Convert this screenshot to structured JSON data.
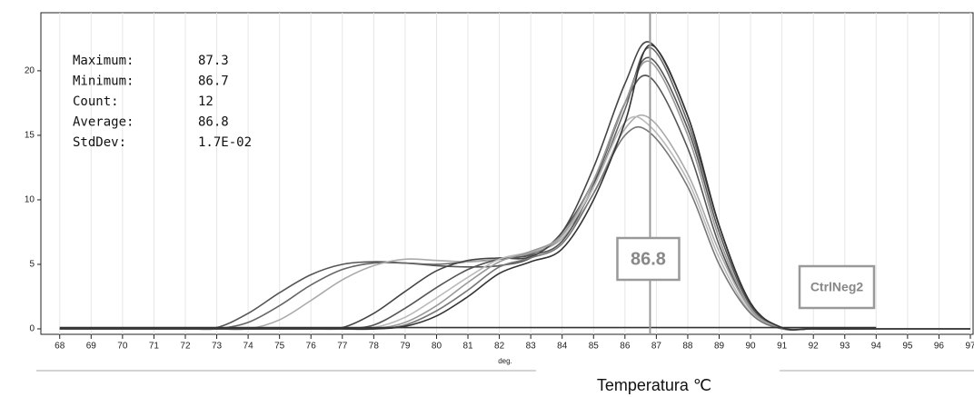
{
  "chart_data": {
    "type": "line",
    "x": [
      68,
      70,
      72,
      73,
      74,
      75,
      76,
      77,
      78,
      79,
      80,
      81,
      82,
      83,
      84,
      85,
      86,
      86.8,
      88,
      89,
      90,
      91,
      92,
      94,
      97
    ],
    "xlim": [
      67.4,
      97
    ],
    "ylim": [
      0,
      24.5
    ],
    "xticks": [
      68,
      69,
      70,
      71,
      72,
      73,
      74,
      75,
      76,
      77,
      78,
      79,
      80,
      81,
      82,
      83,
      84,
      85,
      86,
      87,
      88,
      89,
      90,
      91,
      92,
      93,
      94,
      95,
      96,
      97
    ],
    "yticks": [
      0,
      5,
      10,
      15,
      20
    ],
    "x_unit": "deg.",
    "xlabel": "Temperatura ℃",
    "stats": [
      {
        "label": "Maximum:",
        "value": "87.3"
      },
      {
        "label": "Minimum:",
        "value": "86.7"
      },
      {
        "label": "Count:",
        "value": "12"
      },
      {
        "label": "Average:",
        "value": "86.8"
      },
      {
        "label": "StdDev:",
        "value": "1.7E-02"
      }
    ],
    "marker": 86.8,
    "series": [
      {
        "color": "#555555",
        "values": [
          0,
          0,
          0,
          0.1,
          1.2,
          2.8,
          4.2,
          5,
          5.2,
          5.1,
          4.9,
          4.8,
          4.9,
          5.5,
          7.5,
          11.5,
          17.5,
          19.5,
          14,
          6.5,
          1.5,
          0.1,
          0,
          0,
          0
        ]
      },
      {
        "color": "#666666",
        "values": [
          0,
          0,
          0,
          0,
          0.5,
          1.8,
          3.4,
          4.6,
          5.1,
          5.1,
          5,
          5.2,
          5.4,
          5.8,
          7.2,
          11,
          17,
          21.8,
          16,
          8,
          2,
          0.1,
          0,
          0,
          0
        ]
      },
      {
        "color": "#aaaaaa",
        "values": [
          0,
          0,
          0,
          0,
          0,
          0.7,
          2.2,
          3.8,
          4.9,
          5.4,
          5.3,
          5.2,
          5.4,
          5.9,
          7,
          10.5,
          15.5,
          16.3,
          12,
          6,
          1.5,
          0.1,
          0,
          0,
          0
        ]
      },
      {
        "color": "#444444",
        "values": [
          0,
          0,
          0,
          0,
          0,
          0,
          0,
          0.1,
          1.2,
          2.9,
          4.5,
          5.3,
          5.5,
          5.6,
          7.5,
          12.5,
          19,
          22.2,
          16.5,
          8,
          2,
          0.1,
          0,
          0,
          0
        ]
      },
      {
        "color": "#555555",
        "values": [
          0,
          0,
          0,
          0,
          0,
          0,
          0,
          0,
          0.3,
          1.6,
          3.2,
          4.6,
          5.4,
          5.7,
          6.8,
          11.2,
          17.5,
          21,
          15.5,
          7.5,
          1.8,
          0.1,
          0,
          0,
          0
        ]
      },
      {
        "color": "#bbbbbb",
        "values": [
          0,
          0,
          0,
          0,
          0,
          0,
          0,
          0,
          0.1,
          0.9,
          2.4,
          4,
          5.4,
          6,
          7.2,
          11,
          16,
          15.7,
          11.5,
          5.5,
          1.3,
          0.1,
          0,
          0,
          0
        ]
      },
      {
        "color": "#999999",
        "values": [
          0,
          0,
          0,
          0,
          0,
          0,
          0,
          0,
          0,
          0.5,
          1.8,
          3.6,
          5.2,
          6,
          7.3,
          11.5,
          17.5,
          20.7,
          15,
          7,
          1.6,
          0.1,
          0,
          0,
          0
        ]
      },
      {
        "color": "#777777",
        "values": [
          0,
          0,
          0,
          0,
          0,
          0,
          0,
          0,
          0,
          0.3,
          1.4,
          3,
          4.8,
          5.5,
          6.6,
          10.5,
          15,
          15.2,
          11,
          5,
          1.2,
          0,
          0,
          0,
          0
        ]
      },
      {
        "color": "#333333",
        "values": [
          0,
          0,
          0,
          0,
          0,
          0,
          0,
          0,
          0,
          0.2,
          1,
          2.5,
          4.3,
          5.2,
          6.2,
          10,
          16,
          22,
          16.5,
          8,
          2,
          0.1,
          0,
          0,
          0
        ]
      },
      {
        "name": "CtrlNeg2",
        "color": "#333333",
        "values": [
          0.1,
          0.1,
          0.1,
          0.1,
          0.1,
          0.1,
          0.1,
          0.1,
          0.1,
          0.1,
          0.1,
          0.1,
          0.1,
          0.1,
          0.1,
          0.1,
          0.1,
          0.1,
          0.1,
          0.1,
          0.1,
          0.1,
          0.1,
          0.1,
          null
        ]
      }
    ]
  }
}
